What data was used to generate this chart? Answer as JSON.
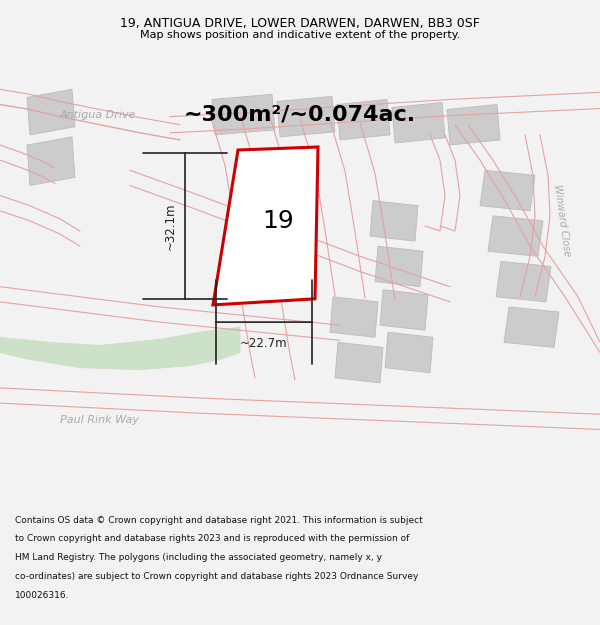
{
  "title_line1": "19, ANTIGUA DRIVE, LOWER DARWEN, DARWEN, BB3 0SF",
  "title_line2": "Map shows position and indicative extent of the property.",
  "footer_lines": [
    "Contains OS data © Crown copyright and database right 2021. This information is subject",
    "to Crown copyright and database rights 2023 and is reproduced with the permission of",
    "HM Land Registry. The polygons (including the associated geometry, namely x, y",
    "co-ordinates) are subject to Crown copyright and database rights 2023 Ordnance Survey",
    "100026316."
  ],
  "area_label": "~300m²/~0.074ac.",
  "plot_number": "19",
  "dim_width": "~22.7m",
  "dim_height": "~32.1m",
  "street_antigua": "Antigua Drive",
  "street_winward": "Winward Close",
  "street_paul": "Paul Rink Way",
  "bg_color": "#f2f2f2",
  "map_bg": "#ffffff",
  "bld_gray": "#cccccc",
  "bld_edge": "#bbbbbb",
  "plot_outline_color": "#cc0000",
  "plot_fill": "#ffffff",
  "dim_color": "#222222",
  "pink": "#e8a0a0",
  "green_color": "#cde0c8",
  "street_color": "#aaaaaa",
  "title_color": "#000000",
  "footer_color": "#111111",
  "title_fontsize": 9,
  "subtitle_fontsize": 8,
  "footer_fontsize": 6.5,
  "area_fontsize": 16,
  "number_fontsize": 18,
  "dim_fontsize": 8.5,
  "street_fontsize": 8
}
